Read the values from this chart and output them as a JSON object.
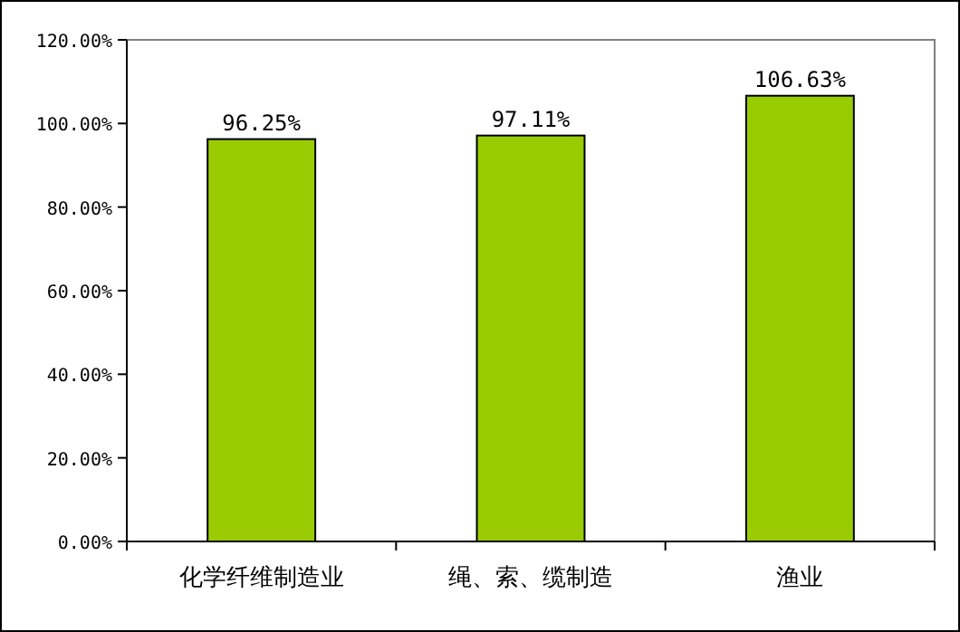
{
  "chart_data": {
    "type": "bar",
    "categories": [
      "化学纤维制造业",
      "绳、索、缆制造",
      "渔业"
    ],
    "values": [
      96.25,
      97.11,
      106.63
    ],
    "value_labels": [
      "96.25%",
      "97.11%",
      "106.63%"
    ],
    "color": "#99cc00",
    "ylim": [
      0,
      120
    ],
    "yticks": [
      {
        "value": 0,
        "label": "0.00%"
      },
      {
        "value": 20,
        "label": "20.00%"
      },
      {
        "value": 40,
        "label": "40.00%"
      },
      {
        "value": 60,
        "label": "60.00%"
      },
      {
        "value": 80,
        "label": "80.00%"
      },
      {
        "value": 100,
        "label": "100.00%"
      },
      {
        "value": 120,
        "label": "120.00%"
      }
    ],
    "grid": false
  }
}
